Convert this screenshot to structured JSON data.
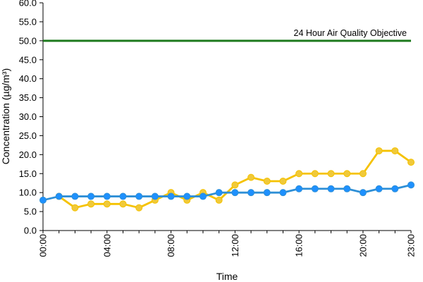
{
  "chart_data": {
    "type": "line",
    "title": "",
    "xlabel": "Time",
    "ylabel": "Concentration (µg/m³)",
    "ylim": [
      0,
      60
    ],
    "y_ticks": [
      "0.0",
      "5.0",
      "10.0",
      "15.0",
      "20.0",
      "25.0",
      "30.0",
      "35.0",
      "40.0",
      "45.0",
      "50.0",
      "55.0",
      "60.0"
    ],
    "x_tick_labels": [
      "00:00",
      "04:00",
      "08:00",
      "12:00",
      "16:00",
      "20:00",
      "23:00"
    ],
    "x_tick_hours": [
      0,
      4,
      8,
      12,
      16,
      20,
      23
    ],
    "x_hours": [
      0,
      1,
      2,
      3,
      4,
      5,
      6,
      7,
      8,
      9,
      10,
      11,
      12,
      13,
      14,
      15,
      16,
      17,
      18,
      19,
      20,
      21,
      22,
      23
    ],
    "grid": false,
    "legend": "none",
    "series": [
      {
        "color": "#f5c200",
        "marker_fill": "#f0c93a",
        "values": [
          null,
          9,
          6,
          7,
          7,
          7,
          6,
          8,
          10,
          8,
          10,
          8,
          12,
          14,
          13,
          13,
          15,
          15,
          15,
          15,
          15,
          21,
          21,
          18
        ]
      },
      {
        "color": "#2e8fd6",
        "marker_fill": "#1e90ff",
        "values": [
          8,
          9,
          9,
          9,
          9,
          9,
          9,
          9,
          9,
          9,
          9,
          10,
          10,
          10,
          10,
          10,
          11,
          11,
          11,
          11,
          10,
          11,
          11,
          12
        ]
      }
    ],
    "reference_line": {
      "value": 50,
      "label": "24 Hour Air Quality Objective",
      "color": "#1e7a1e"
    }
  }
}
